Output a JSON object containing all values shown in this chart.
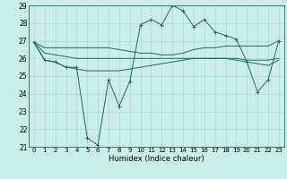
{
  "xlabel": "Humidex (Indice chaleur)",
  "bg_color": "#cceee8",
  "line_color": "#1a6b5a",
  "grid_color": "#aad8d0",
  "xlim": [
    -0.5,
    23.5
  ],
  "ylim": [
    21,
    29
  ],
  "yticks": [
    21,
    22,
    23,
    24,
    25,
    26,
    27,
    28,
    29
  ],
  "xticks": [
    0,
    1,
    2,
    3,
    4,
    5,
    6,
    7,
    8,
    9,
    10,
    11,
    12,
    13,
    14,
    15,
    16,
    17,
    18,
    19,
    20,
    21,
    22,
    23
  ],
  "main_line": [
    26.9,
    25.9,
    25.8,
    25.5,
    25.5,
    21.5,
    21.1,
    24.8,
    23.3,
    24.7,
    27.9,
    28.2,
    27.9,
    29.0,
    28.7,
    27.8,
    28.2,
    27.5,
    27.3,
    27.1,
    25.8,
    24.1,
    24.8,
    27.0
  ],
  "upper_line": [
    26.9,
    26.6,
    26.6,
    26.6,
    26.6,
    26.6,
    26.6,
    26.6,
    26.5,
    26.4,
    26.3,
    26.3,
    26.2,
    26.2,
    26.3,
    26.5,
    26.6,
    26.6,
    26.7,
    26.7,
    26.7,
    26.7,
    26.7,
    27.0
  ],
  "mid_line": [
    26.9,
    26.3,
    26.2,
    26.1,
    26.0,
    26.0,
    26.0,
    26.0,
    26.0,
    26.0,
    26.0,
    26.0,
    26.0,
    26.0,
    26.0,
    26.0,
    26.0,
    26.0,
    26.0,
    26.0,
    25.9,
    25.9,
    25.9,
    26.0
  ],
  "lower_line": [
    26.9,
    25.9,
    25.8,
    25.5,
    25.4,
    25.3,
    25.3,
    25.3,
    25.3,
    25.4,
    25.5,
    25.6,
    25.7,
    25.8,
    25.9,
    26.0,
    26.0,
    26.0,
    26.0,
    25.9,
    25.8,
    25.7,
    25.6,
    25.9
  ]
}
